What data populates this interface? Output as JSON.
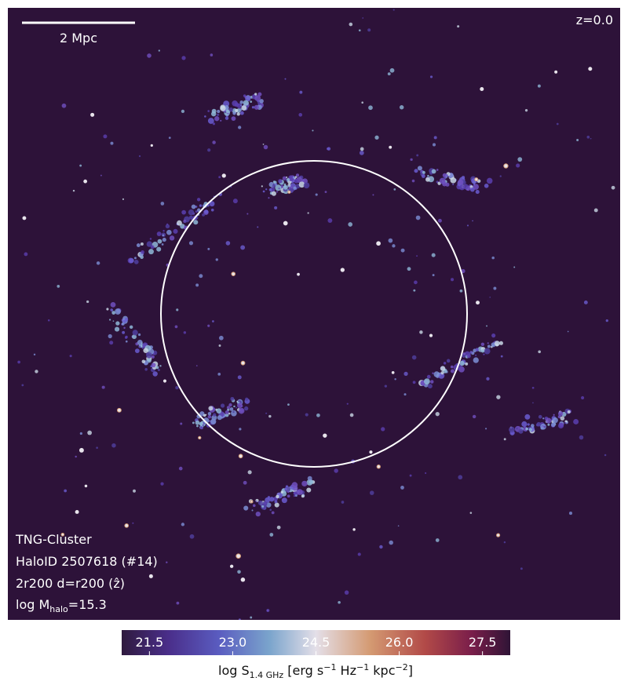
{
  "chart_data": {
    "type": "colorbar",
    "redshift_label": "z=0.0",
    "scale_label": "2 Mpc",
    "info_lines": [
      "TNG-Cluster",
      "HaloID 2507618 (#14)",
      "2r200 d=r200 (ẑ)"
    ],
    "mass_label": [
      "log M",
      "halo",
      "=15.3"
    ],
    "colorbar_label": [
      "log S",
      "1.4 GHz",
      " [erg s",
      "−1",
      " Hz",
      "−1",
      " kpc",
      "−2",
      "]"
    ],
    "xlim": [
      21,
      28
    ],
    "xticks": [
      21.5,
      {
        "value": 23,
        "label": "23.0"
      },
      24.5,
      {
        "value": 26,
        "label": "26.0"
      },
      27.5
    ]
  }
}
